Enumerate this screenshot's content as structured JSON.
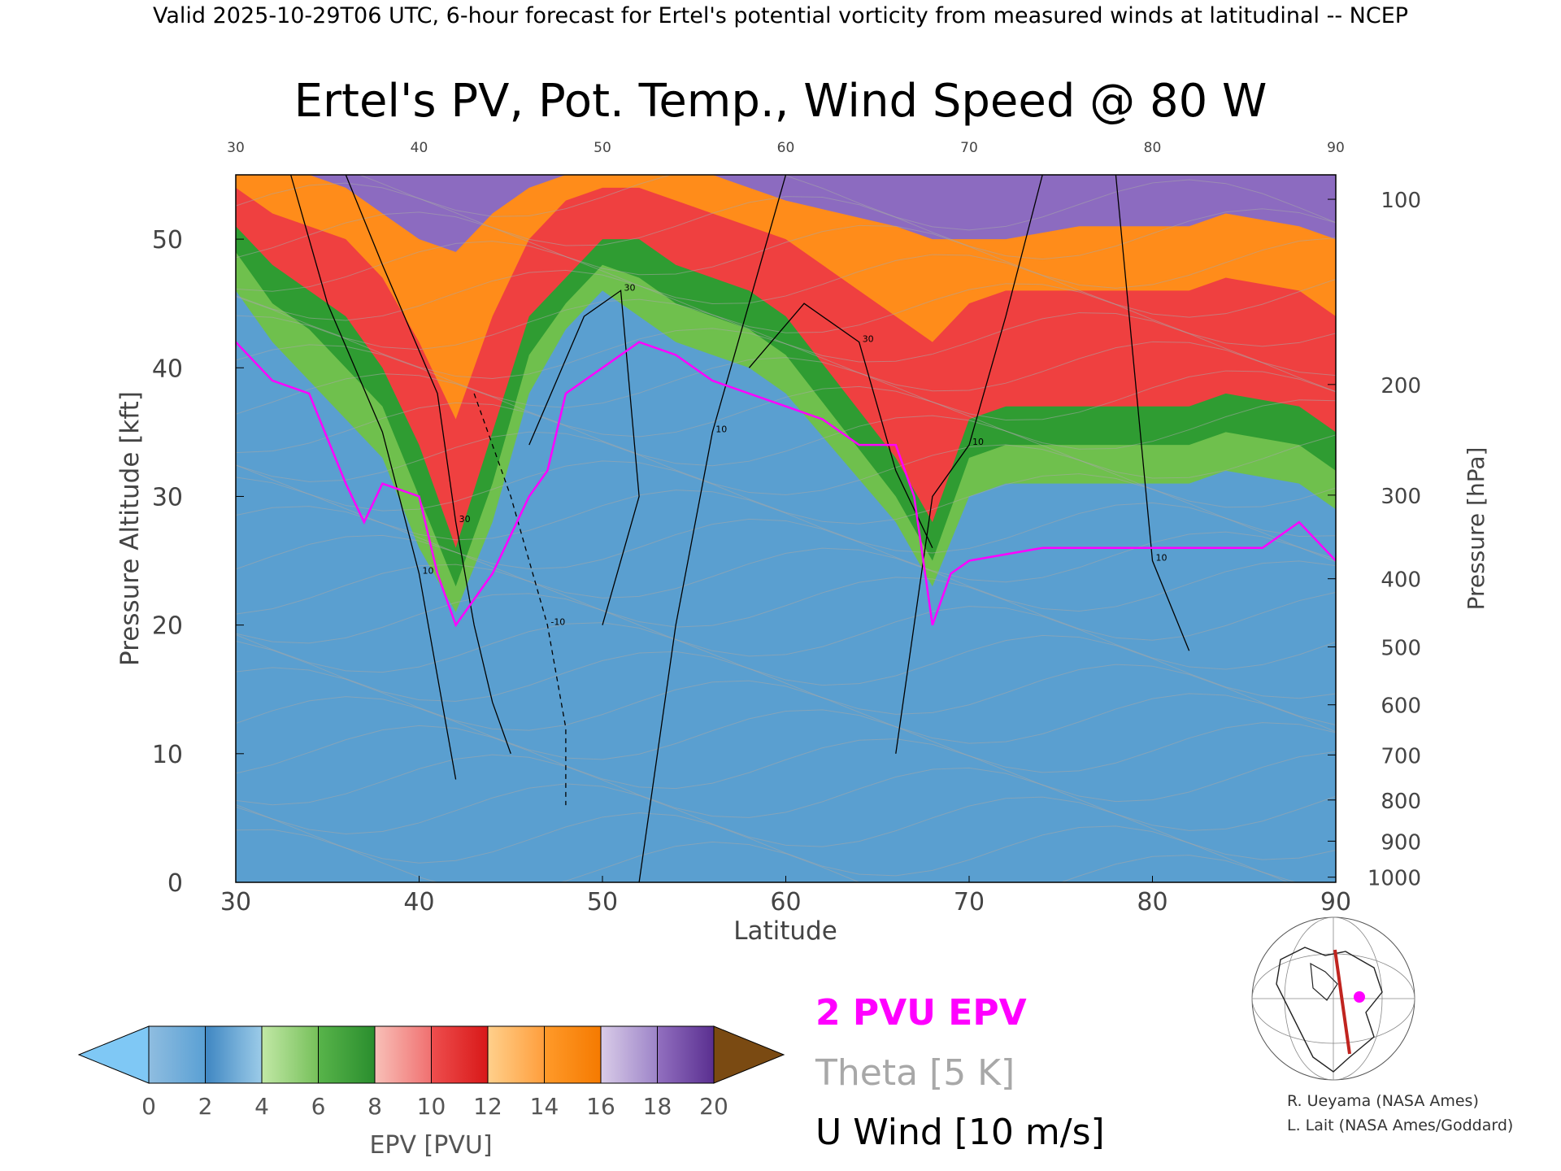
{
  "header": "Valid 2025-10-29T06 UTC, 6-hour forecast for Ertel's potential vorticity from measured winds at latitudinal -- NCEP",
  "chart_data": {
    "type": "heatmap",
    "title": "Ertel's PV, Pot. Temp., Wind Speed @ 80 W",
    "xlabel": "Latitude",
    "ylabel": "Pressure Altitude [kft]",
    "ylabel_right": "Pressure [hPa]",
    "xlim": [
      30,
      90
    ],
    "ylim": [
      0,
      55
    ],
    "x_ticks": [
      "30",
      "40",
      "50",
      "60",
      "70",
      "80",
      "90"
    ],
    "y_ticks": [
      "0",
      "10",
      "20",
      "30",
      "40",
      "50"
    ],
    "pressure_ticks": [
      {
        "label": "100",
        "kft": 53.1
      },
      {
        "label": "200",
        "kft": 38.7
      },
      {
        "label": "300",
        "kft": 30.1
      },
      {
        "label": "400",
        "kft": 23.6
      },
      {
        "label": "500",
        "kft": 18.3
      },
      {
        "label": "600",
        "kft": 13.8
      },
      {
        "label": "700",
        "kft": 9.9
      },
      {
        "label": "800",
        "kft": 6.4
      },
      {
        "label": "900",
        "kft": 3.2
      },
      {
        "label": "1000",
        "kft": 0.4
      }
    ],
    "tropopause_2pvu_kft": {
      "lat": [
        30,
        32,
        34,
        36,
        37,
        38,
        40,
        41,
        42,
        43,
        44,
        46,
        47,
        48,
        50,
        51,
        52,
        54,
        56,
        58,
        60,
        62,
        64,
        66,
        67,
        68,
        69,
        70,
        74,
        78,
        82,
        86,
        88,
        90
      ],
      "kft": [
        42,
        39,
        38,
        31,
        28,
        31,
        30,
        24,
        20,
        22,
        24,
        30,
        32,
        38,
        40,
        41,
        42,
        41,
        39,
        38,
        37,
        36,
        34,
        34,
        30,
        20,
        24,
        25,
        26,
        26,
        26,
        26,
        28,
        25
      ]
    },
    "pv_bands": [
      {
        "pvu": 2,
        "kft": [
          46,
          42,
          39,
          36,
          33,
          26,
          21,
          28,
          38,
          43,
          46,
          44,
          42,
          41,
          40,
          38,
          28,
          23,
          30,
          31,
          31,
          31,
          31,
          32,
          31,
          29
        ]
      },
      {
        "pvu": 4,
        "kft": [
          49,
          45,
          43,
          40,
          37,
          30,
          23,
          31,
          41,
          45,
          48,
          47,
          45,
          44,
          43,
          41,
          30,
          25,
          33,
          34,
          34,
          34,
          34,
          35,
          34,
          32
        ]
      },
      {
        "pvu": 6,
        "kft": [
          51,
          48,
          46,
          44,
          40,
          34,
          26,
          35,
          44,
          47,
          50,
          50,
          48,
          47,
          46,
          44,
          33,
          28,
          36,
          37,
          37,
          37,
          37,
          38,
          37,
          35
        ]
      },
      {
        "pvu": 10,
        "kft": [
          54,
          52,
          51,
          50,
          47,
          42,
          36,
          44,
          50,
          53,
          54,
          54,
          53,
          52,
          51,
          50,
          44,
          42,
          45,
          46,
          46,
          46,
          46,
          47,
          46,
          44
        ]
      },
      {
        "pvu": 14,
        "kft": [
          55,
          55,
          55,
          54,
          52,
          50,
          49,
          52,
          54,
          55,
          55,
          55,
          55,
          55,
          54,
          53,
          51,
          50,
          50,
          50,
          51,
          51,
          51,
          52,
          51,
          50
        ]
      }
    ],
    "pv_band_lat": [
      30,
      32,
      34,
      36,
      38,
      40,
      42,
      44,
      46,
      48,
      50,
      52,
      54,
      56,
      58,
      60,
      66,
      68,
      70,
      72,
      76,
      80,
      82,
      84,
      88,
      90
    ],
    "u_wind_contours": [
      {
        "label": "30",
        "lat": [
          36,
          38,
          41,
          42,
          43,
          44,
          45
        ],
        "kft": [
          55,
          48,
          38,
          28,
          20,
          14,
          10
        ]
      },
      {
        "label": "10",
        "lat": [
          33,
          35,
          38,
          40,
          41,
          42
        ],
        "kft": [
          55,
          45,
          35,
          24,
          16,
          8
        ]
      },
      {
        "label": "30",
        "lat": [
          46,
          49,
          51,
          52,
          50
        ],
        "kft": [
          34,
          44,
          46,
          30,
          20
        ]
      },
      {
        "label": "10",
        "lat": [
          52,
          54,
          56,
          58,
          60
        ],
        "kft": [
          0,
          20,
          35,
          45,
          55
        ]
      },
      {
        "label": "30",
        "lat": [
          58,
          61,
          64,
          66,
          68
        ],
        "kft": [
          40,
          45,
          42,
          32,
          26
        ]
      },
      {
        "label": "10",
        "lat": [
          66,
          67,
          68,
          70,
          72,
          74
        ],
        "kft": [
          10,
          20,
          30,
          34,
          44,
          55
        ]
      },
      {
        "label": "10",
        "lat": [
          78,
          79,
          80,
          82
        ],
        "kft": [
          55,
          40,
          25,
          18
        ]
      },
      {
        "label": "-10",
        "lat": [
          43,
          45,
          47,
          48,
          48
        ],
        "kft": [
          38,
          30,
          20,
          12,
          6
        ]
      }
    ],
    "legend": [
      "2 PVU EPV",
      "Theta [5 K]",
      "U Wind [10 m/s]"
    ],
    "legend_colors": [
      "#ff00ff",
      "#a8a8a8",
      "#000000"
    ],
    "colorbar": {
      "label": "EPV [PVU]",
      "ticks": [
        "0",
        "2",
        "4",
        "6",
        "8",
        "10",
        "12",
        "14",
        "16",
        "18",
        "20"
      ],
      "colors": [
        "#7fb3dd",
        "#3e86c2",
        "#8fcf6e",
        "#33a235",
        "#f58a8a",
        "#e42a2a",
        "#ffb054",
        "#ff8410",
        "#b39cd3",
        "#7a4fa8",
        "#f4f09a",
        "#8b5a16"
      ],
      "under": "#7fc8f5",
      "over": "#7a4a12"
    },
    "credits": [
      "R. Ueyama (NASA Ames)",
      "L. Lait (NASA Ames/Goddard)"
    ],
    "inset_map": {
      "section_line_color": "#c0241f",
      "marker_color": "#ff00ff"
    }
  }
}
